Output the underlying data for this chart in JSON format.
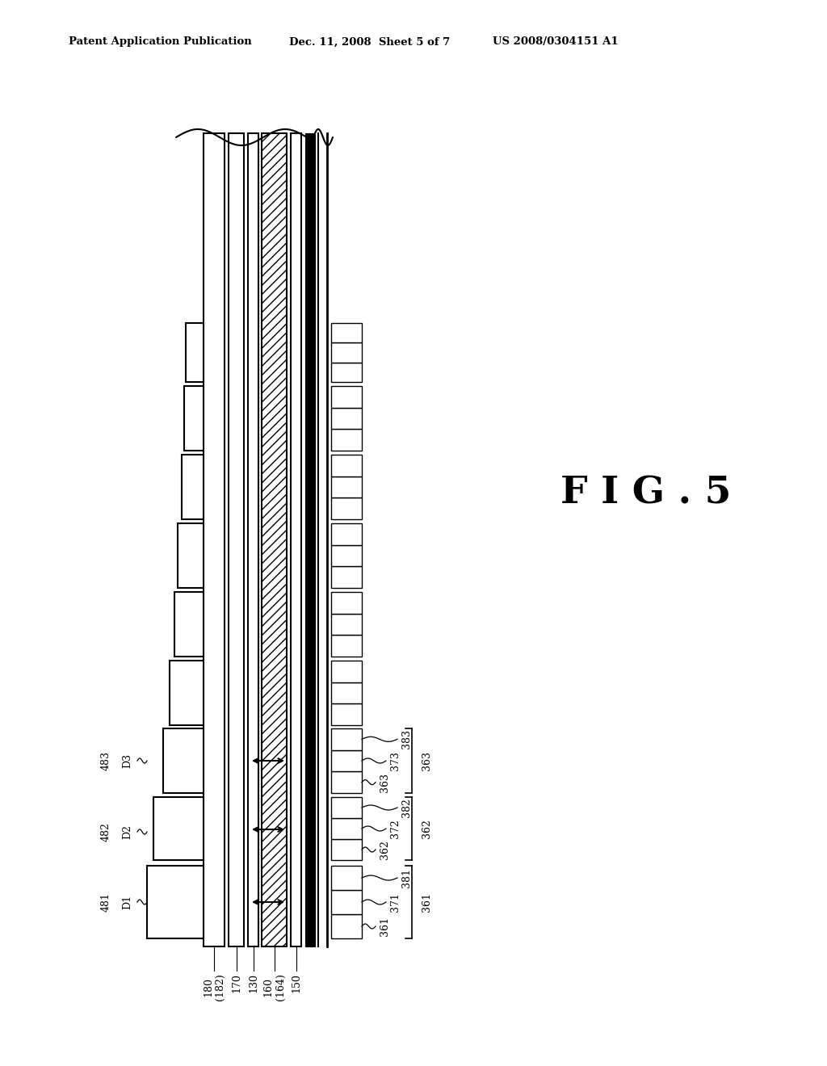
{
  "bg_color": "#ffffff",
  "line_color": "#000000",
  "header_left": "Patent Application Publication",
  "header_mid": "Dec. 11, 2008  Sheet 5 of 7",
  "header_right": "US 2008/0304151 A1",
  "fig_label": "F I G . 5",
  "labels_left": [
    "481",
    "482",
    "483",
    "D1",
    "D2",
    "D3"
  ],
  "labels_bottom": [
    "180\n(182)",
    "170",
    "130",
    "160\n(164)",
    "150"
  ],
  "labels_right_top": [
    "363",
    "373",
    "383"
  ],
  "labels_right_mid": [
    "362",
    "372",
    "382"
  ],
  "labels_right_bot": [
    "361",
    "371",
    "381"
  ]
}
